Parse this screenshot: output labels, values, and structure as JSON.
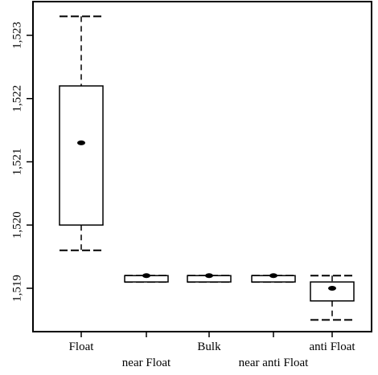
{
  "chart_data": {
    "type": "box",
    "title": "",
    "xlabel": "",
    "ylabel": "",
    "ylim": [
      1.5184,
      1.5235
    ],
    "y_ticks": [
      {
        "value": 1.519,
        "label": "1,519"
      },
      {
        "value": 1.52,
        "label": "1,520"
      },
      {
        "value": 1.521,
        "label": "1,521"
      },
      {
        "value": 1.522,
        "label": "1,522"
      },
      {
        "value": 1.523,
        "label": "1,523"
      }
    ],
    "categories": [
      "Float",
      "near Float",
      "Bulk",
      "near anti Float",
      "anti Float"
    ],
    "boxes": [
      {
        "category": "Float",
        "whisker_low": 1.5196,
        "q1": 1.52,
        "median": 1.5213,
        "q3": 1.5222,
        "whisker_high": 1.5233
      },
      {
        "category": "near Float",
        "whisker_low": 1.5191,
        "q1": 1.5191,
        "median": 1.5192,
        "q3": 1.5192,
        "whisker_high": 1.5192
      },
      {
        "category": "Bulk",
        "whisker_low": 1.5191,
        "q1": 1.5191,
        "median": 1.5192,
        "q3": 1.5192,
        "whisker_high": 1.5192
      },
      {
        "category": "near anti Float",
        "whisker_low": 1.5191,
        "q1": 1.5191,
        "median": 1.5192,
        "q3": 1.5192,
        "whisker_high": 1.5192
      },
      {
        "category": "anti Float",
        "whisker_low": 1.5185,
        "q1": 1.5188,
        "median": 1.519,
        "q3": 1.5191,
        "whisker_high": 1.5192
      }
    ],
    "grid": false
  },
  "colors": {
    "line": "#000000",
    "box_fill": "#ffffff"
  }
}
